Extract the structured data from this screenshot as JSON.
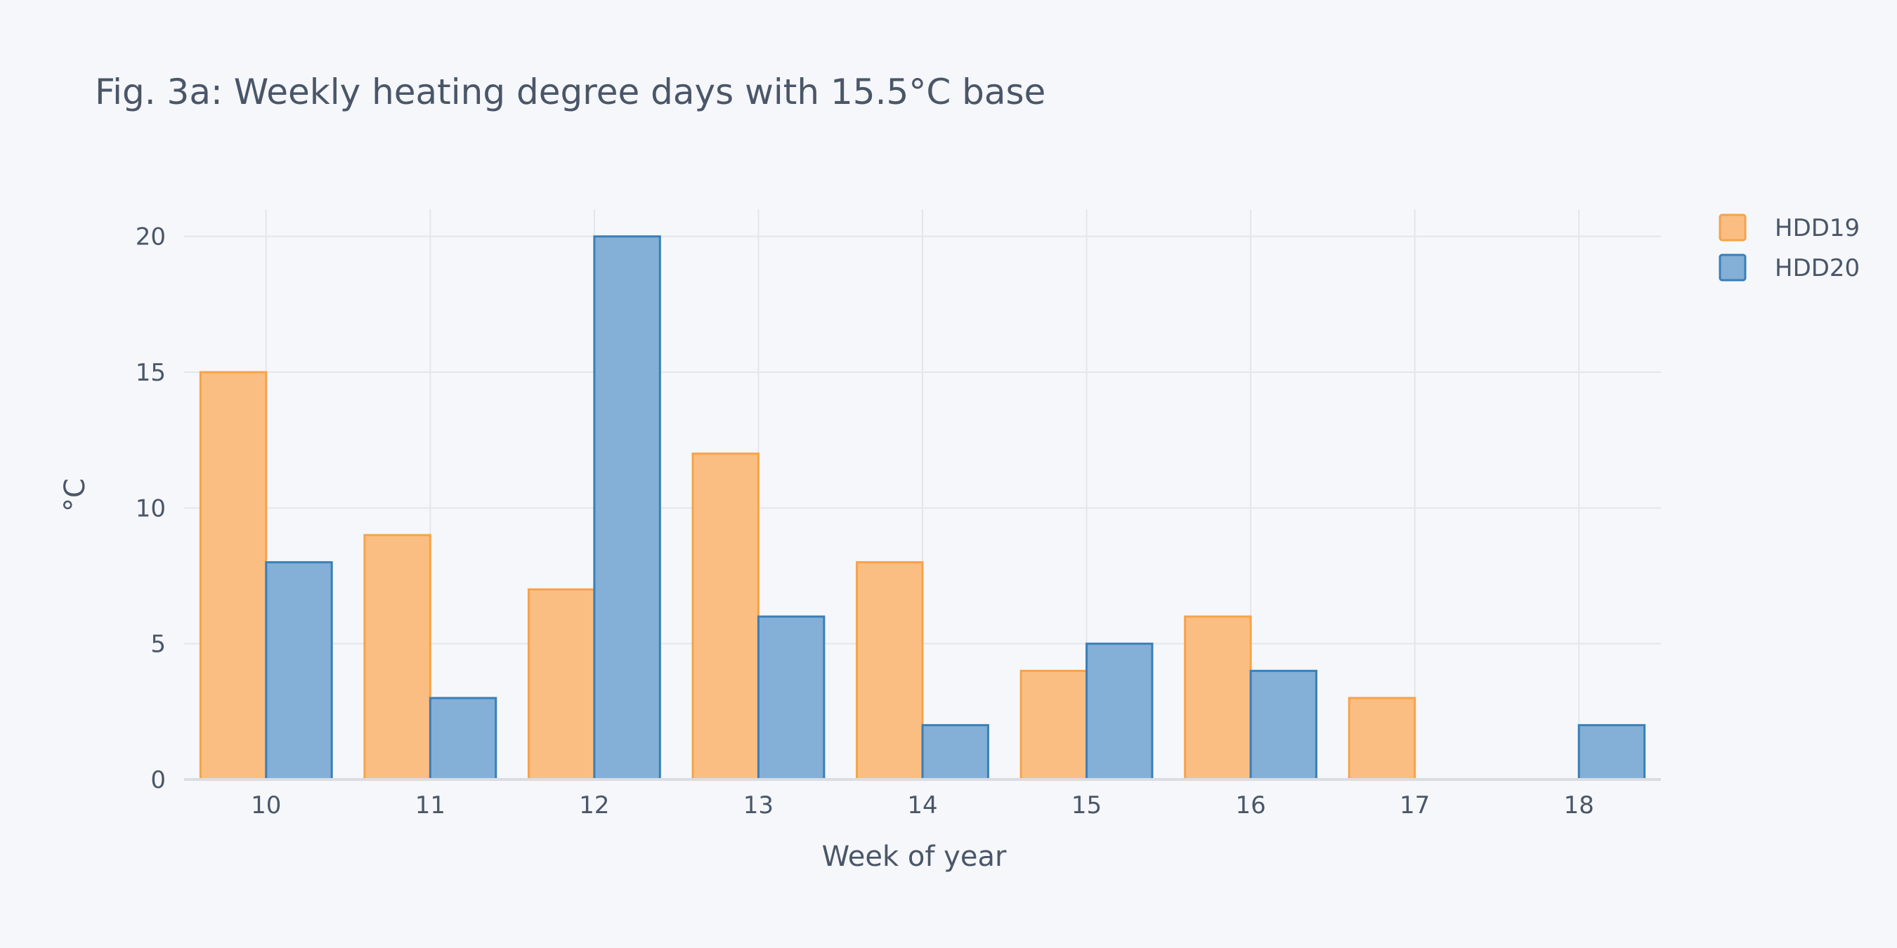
{
  "chart_data": {
    "type": "bar",
    "title": "Fig. 3a: Weekly heating degree days with 15.5°C base",
    "xlabel": "Week of year",
    "ylabel": "°C",
    "categories": [
      "10",
      "11",
      "12",
      "13",
      "14",
      "15",
      "16",
      "17",
      "18"
    ],
    "ylim": [
      0,
      21
    ],
    "yticks": [
      0,
      5,
      10,
      15,
      20
    ],
    "grid": true,
    "legend_position": "top-right",
    "series": [
      {
        "name": "HDD19",
        "values": [
          15,
          9,
          7,
          12,
          8,
          4,
          6,
          3,
          0
        ],
        "fill": "#fbbe82",
        "stroke": "#f7a24a"
      },
      {
        "name": "HDD20",
        "values": [
          8,
          3,
          20,
          6,
          2,
          5,
          4,
          0,
          2
        ],
        "fill": "#84afd6",
        "stroke": "#3a7fb8"
      }
    ]
  },
  "colors": {
    "background": "#f5f7fa",
    "grid": "#e3e6ea",
    "text": "#4a5668"
  }
}
